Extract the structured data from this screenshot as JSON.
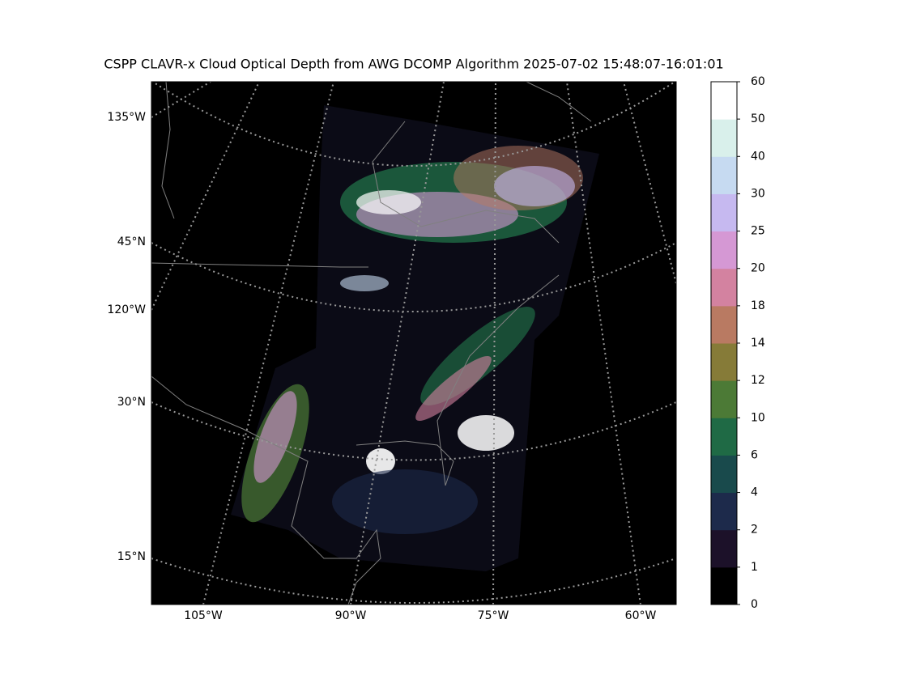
{
  "title": "CSPP CLAVR-x Cloud Optical Depth from AWG DCOMP Algorithm 2025-07-02 15:48:07-16:01:01",
  "map": {
    "left_labels": [
      "135°W",
      "45°N",
      "120°W",
      "30°N",
      "15°N"
    ],
    "bottom_labels": [
      "105°W",
      "90°W",
      "75°W",
      "60°W"
    ]
  },
  "colorbar": {
    "boundaries": [
      0,
      1,
      2,
      4,
      6,
      10,
      12,
      14,
      18,
      20,
      25,
      30,
      40,
      50,
      60
    ],
    "colors": [
      "#000000",
      "#1c1129",
      "#1d2a4b",
      "#194a4c",
      "#1f6a45",
      "#4c7a36",
      "#867b38",
      "#b97a62",
      "#d382a0",
      "#d598d4",
      "#c6b9f0",
      "#c6daf1",
      "#d9f0eb",
      "#ffffff"
    ]
  }
}
